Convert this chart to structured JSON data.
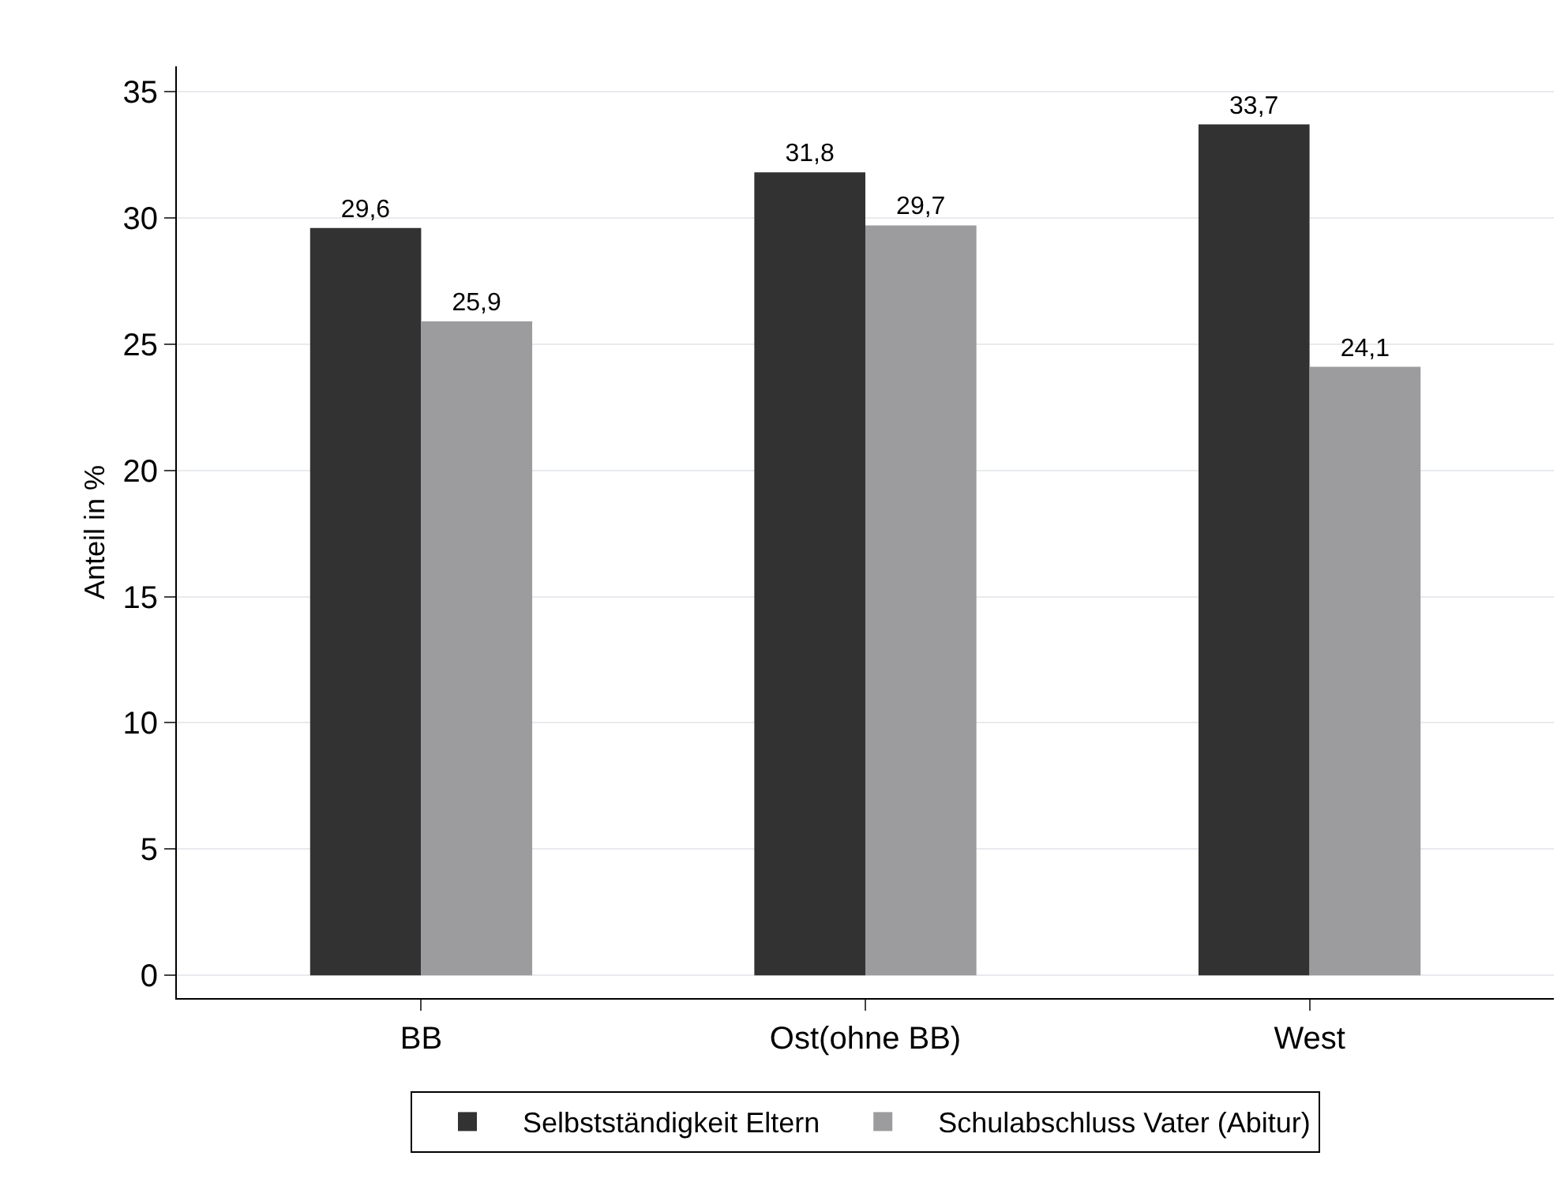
{
  "chart_data": {
    "type": "bar",
    "ylabel": "Anteil in %",
    "categories": [
      "BB",
      "Ost(ohne BB)",
      "West"
    ],
    "series": [
      {
        "name": "Selbstständigkeit Eltern",
        "color": "#323232",
        "values": [
          29.6,
          31.8,
          33.7
        ],
        "value_labels": [
          "29,6",
          "31,8",
          "33,7"
        ]
      },
      {
        "name": "Schulabschluss Vater (Abitur)",
        "color": "#9c9b9d",
        "values": [
          25.9,
          29.7,
          24.1
        ],
        "value_labels": [
          "25,9",
          "29,7",
          "24,1"
        ]
      }
    ],
    "ylim": [
      -0.9,
      36
    ],
    "yticks": [
      0,
      5,
      10,
      15,
      20,
      25,
      30,
      35
    ],
    "grid": "y",
    "legend": "bottom"
  }
}
